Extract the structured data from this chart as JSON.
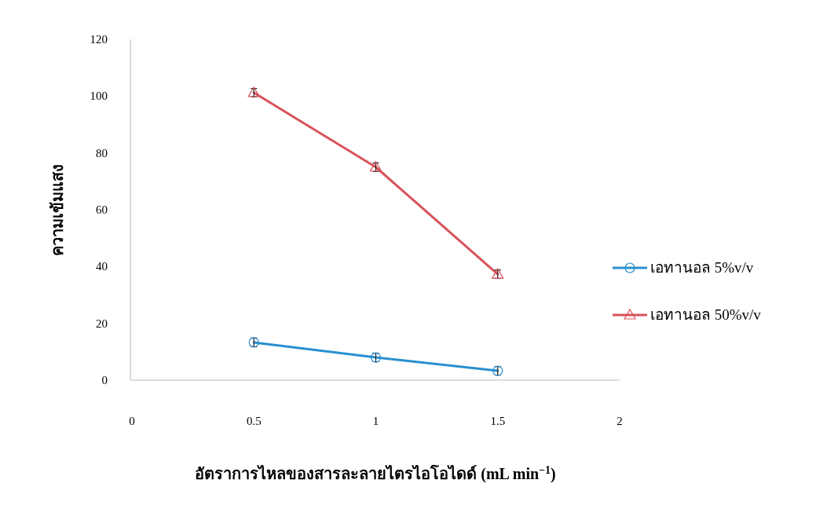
{
  "chart_data": {
    "type": "line",
    "xlabel": "อัตราการไหลของสารละลายไตรไอโอไดด์ (mL min$^{−1}$)",
    "ylabel": "ความเข้มแสง",
    "x": [
      0.5,
      1,
      1.5
    ],
    "xlim": [
      0,
      2
    ],
    "xticks": [
      0,
      0.5,
      1,
      1.5,
      2
    ],
    "ylim": [
      0,
      120
    ],
    "yticks": [
      0,
      20,
      40,
      60,
      80,
      100,
      120
    ],
    "grid": false,
    "legend": "right",
    "line_style": "solid",
    "series": [
      {
        "name": "เอทานอล 5%v/v",
        "color": "#2a8fd0",
        "marker": "circle",
        "values": [
          13.3,
          8,
          3.3
        ],
        "errors": [
          1.5,
          1.5,
          1.5
        ]
      },
      {
        "name": "เอทานอล 50%v/v",
        "color": "#d9525a",
        "marker": "triangle",
        "values": [
          101.2,
          75,
          37.3
        ],
        "errors": [
          1.5,
          1.5,
          1.5
        ]
      }
    ]
  }
}
